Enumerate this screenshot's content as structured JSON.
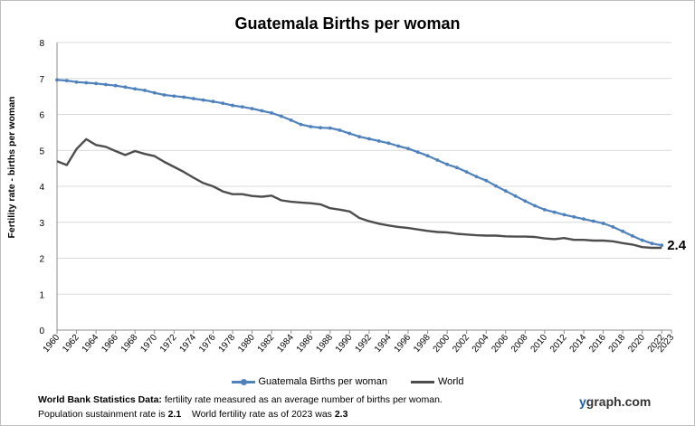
{
  "chart_data": {
    "type": "line",
    "title": "Guatemala Births per woman",
    "xlabel": "",
    "ylabel": "Fertility rate  - births per woman",
    "xlim": [
      1960,
      2023
    ],
    "ylim": [
      0,
      8
    ],
    "yticks": [
      0,
      1,
      2,
      3,
      4,
      5,
      6,
      7,
      8
    ],
    "xticks": [
      1960,
      1962,
      1964,
      1966,
      1968,
      1970,
      1972,
      1974,
      1976,
      1978,
      1980,
      1982,
      1984,
      1986,
      1988,
      1990,
      1992,
      1994,
      1996,
      1998,
      2000,
      2002,
      2004,
      2006,
      2008,
      2010,
      2012,
      2014,
      2016,
      2018,
      2020,
      2022,
      2023
    ],
    "grid": true,
    "legend_position": "bottom",
    "annotation": "2.4",
    "series": [
      {
        "name": "Guatemala Births per woman",
        "color": "#4f81bd",
        "markers": true,
        "x": [
          1960,
          1961,
          1962,
          1963,
          1964,
          1965,
          1966,
          1967,
          1968,
          1969,
          1970,
          1971,
          1972,
          1973,
          1974,
          1975,
          1976,
          1977,
          1978,
          1979,
          1980,
          1981,
          1982,
          1983,
          1984,
          1985,
          1986,
          1987,
          1988,
          1989,
          1990,
          1991,
          1992,
          1993,
          1994,
          1995,
          1996,
          1997,
          1998,
          1999,
          2000,
          2001,
          2002,
          2003,
          2004,
          2005,
          2006,
          2007,
          2008,
          2009,
          2010,
          2011,
          2012,
          2013,
          2014,
          2015,
          2016,
          2017,
          2018,
          2019,
          2020,
          2021,
          2022
        ],
        "values": [
          6.96,
          6.94,
          6.9,
          6.88,
          6.86,
          6.83,
          6.8,
          6.76,
          6.71,
          6.67,
          6.6,
          6.54,
          6.51,
          6.48,
          6.44,
          6.4,
          6.36,
          6.31,
          6.25,
          6.21,
          6.16,
          6.1,
          6.04,
          5.95,
          5.84,
          5.72,
          5.66,
          5.63,
          5.62,
          5.56,
          5.47,
          5.38,
          5.32,
          5.26,
          5.2,
          5.12,
          5.05,
          4.95,
          4.85,
          4.73,
          4.61,
          4.52,
          4.4,
          4.27,
          4.16,
          4.01,
          3.87,
          3.73,
          3.59,
          3.46,
          3.35,
          3.28,
          3.21,
          3.15,
          3.09,
          3.03,
          2.97,
          2.87,
          2.75,
          2.62,
          2.5,
          2.41,
          2.36
        ]
      },
      {
        "name": "World",
        "color": "#4d4d4d",
        "markers": false,
        "x": [
          1960,
          1961,
          1962,
          1963,
          1964,
          1965,
          1966,
          1967,
          1968,
          1969,
          1970,
          1971,
          1972,
          1973,
          1974,
          1975,
          1976,
          1977,
          1978,
          1979,
          1980,
          1981,
          1982,
          1983,
          1984,
          1985,
          1986,
          1987,
          1988,
          1989,
          1990,
          1991,
          1992,
          1993,
          1994,
          1995,
          1996,
          1997,
          1998,
          1999,
          2000,
          2001,
          2002,
          2003,
          2004,
          2005,
          2006,
          2007,
          2008,
          2009,
          2010,
          2011,
          2012,
          2013,
          2014,
          2015,
          2016,
          2017,
          2018,
          2019,
          2020,
          2021,
          2022
        ],
        "values": [
          4.7,
          4.59,
          5.04,
          5.31,
          5.15,
          5.1,
          4.98,
          4.87,
          4.98,
          4.9,
          4.84,
          4.68,
          4.54,
          4.4,
          4.24,
          4.09,
          4.0,
          3.86,
          3.78,
          3.78,
          3.73,
          3.71,
          3.74,
          3.61,
          3.57,
          3.55,
          3.53,
          3.5,
          3.39,
          3.35,
          3.3,
          3.12,
          3.03,
          2.96,
          2.91,
          2.87,
          2.84,
          2.8,
          2.76,
          2.73,
          2.72,
          2.68,
          2.66,
          2.64,
          2.63,
          2.63,
          2.61,
          2.6,
          2.6,
          2.59,
          2.55,
          2.53,
          2.56,
          2.51,
          2.51,
          2.49,
          2.49,
          2.47,
          2.42,
          2.38,
          2.31,
          2.29,
          2.29
        ]
      }
    ]
  },
  "footnote": {
    "source_label": "World Bank Statistics Data:",
    "source_text": " fertility rate measured as an average number  of births per woman.",
    "line2_a": "Population sustainment rate is ",
    "sustain_value": "2.1",
    "line2_b": "    World fertility rate as of 2023 was ",
    "world_value": "2.3"
  },
  "brand": {
    "y": "y",
    "rest": "graph.com"
  }
}
